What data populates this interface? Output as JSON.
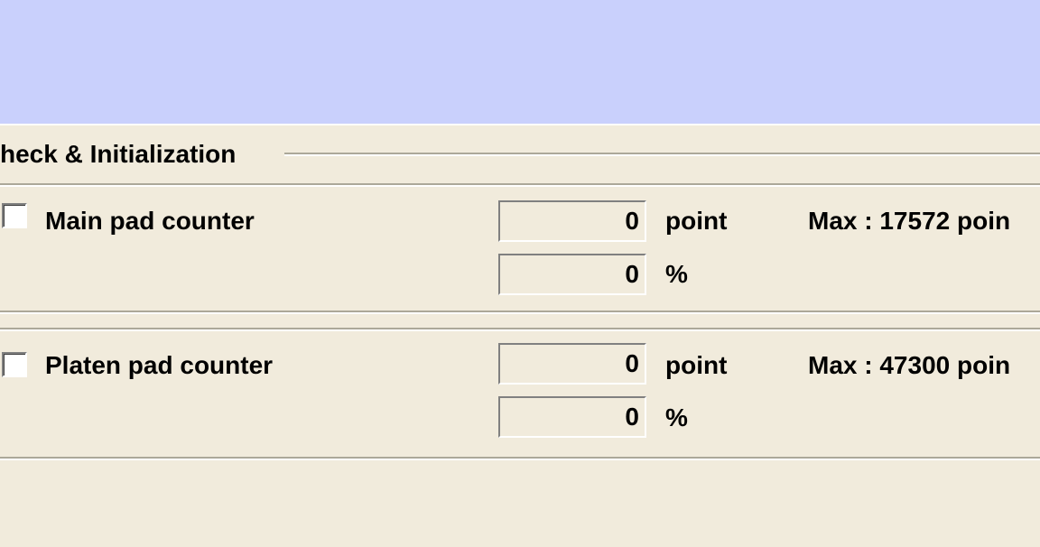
{
  "group": {
    "title": "heck & Initialization",
    "counters": [
      {
        "label": "Main pad counter",
        "point_value": 0,
        "point_unit": "point",
        "percent_value": 0,
        "percent_unit": "%",
        "max": "Max : 17572 poin"
      },
      {
        "label": "Platen pad counter",
        "point_value": 0,
        "point_unit": "point",
        "percent_value": 0,
        "percent_unit": "%",
        "max": "Max : 47300 poin"
      }
    ]
  }
}
